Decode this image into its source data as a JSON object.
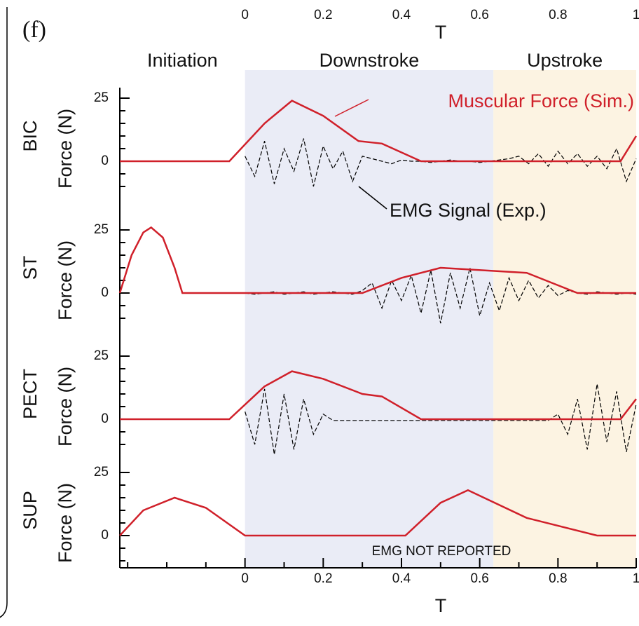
{
  "chart_data": {
    "type": "line",
    "panel_label": "(f)",
    "xlabel": "T",
    "xlim": [
      -0.32,
      1
    ],
    "xticks": [
      0,
      0.2,
      0.4,
      0.6,
      0.8,
      1
    ],
    "xminor": [
      -0.3,
      -0.2,
      -0.1,
      0.1,
      0.3,
      0.5,
      0.7,
      0.9
    ],
    "phases": [
      {
        "label": "Initiation",
        "start": -0.32,
        "end": 0
      },
      {
        "label": "Downstroke",
        "start": 0,
        "end": 0.635,
        "color": "#eaecf6"
      },
      {
        "label": "Upstroke",
        "start": 0.635,
        "end": 1,
        "color": "#fcf3e2"
      }
    ],
    "annotations": [
      "Muscular Force (Sim.)",
      "EMG Signal (Exp.)",
      "EMG NOT REPORTED"
    ],
    "ylim": [
      -12,
      28
    ],
    "yticks": [
      0,
      25
    ],
    "yminor": [
      -10,
      -5,
      5,
      10,
      15,
      20
    ],
    "emg_x": [
      0,
      0.025,
      0.05,
      0.075,
      0.1,
      0.125,
      0.15,
      0.175,
      0.2,
      0.225,
      0.25,
      0.275,
      0.3,
      0.325,
      0.35,
      0.375,
      0.4,
      0.425,
      0.45,
      0.475,
      0.5,
      0.525,
      0.55,
      0.575,
      0.6,
      0.625,
      0.65,
      0.675,
      0.7,
      0.725,
      0.75,
      0.775,
      0.8,
      0.825,
      0.85,
      0.875,
      0.9,
      0.925,
      0.95,
      0.975,
      1
    ],
    "panels": [
      {
        "muscle": "BIC",
        "ylabel": "Force (N)",
        "series": [
          {
            "color": "#d0202a",
            "x": [
              -0.32,
              -0.04,
              0.05,
              0.12,
              0.2,
              0.29,
              0.35,
              0.45,
              0.96,
              1
            ],
            "values": [
              0,
              0,
              15,
              24,
              18,
              8,
              7,
              0,
              0,
              10
            ]
          },
          {
            "color": "#000000",
            "values": [
              2,
              -6,
              8,
              -9,
              5,
              -4,
              9,
              -10,
              6,
              -3,
              4,
              -8,
              2,
              1,
              0,
              -1,
              0.5,
              0,
              0,
              -0.5,
              0,
              0.5,
              0,
              0,
              -0.5,
              0,
              0.5,
              1,
              2,
              -1,
              3,
              -2,
              4,
              -1,
              3,
              -2,
              2,
              -3,
              5,
              -8,
              1
            ]
          }
        ]
      },
      {
        "muscle": "ST",
        "ylabel": "Force (N)",
        "series": [
          {
            "color": "#d0202a",
            "x": [
              -0.32,
              -0.29,
              -0.26,
              -0.24,
              -0.21,
              -0.18,
              -0.16,
              0.3,
              0.4,
              0.5,
              0.72,
              0.85,
              1
            ],
            "values": [
              0,
              15,
              24,
              26,
              22,
              10,
              0,
              0,
              6,
              10,
              8,
              0,
              0
            ]
          },
          {
            "color": "#000000",
            "values": [
              0,
              -0.5,
              0,
              0.5,
              -0.5,
              0,
              0.5,
              -0.5,
              0,
              0.5,
              0,
              -0.5,
              1,
              4,
              -6,
              5,
              -3,
              7,
              -8,
              9,
              -12,
              8,
              -6,
              10,
              -9,
              4,
              -7,
              6,
              -3,
              5,
              -2,
              3,
              -1,
              1,
              0,
              -0.5,
              0.5,
              0,
              -0.5,
              0,
              -0.5
            ]
          }
        ]
      },
      {
        "muscle": "PECT",
        "ylabel": "Force (N)",
        "series": [
          {
            "color": "#d0202a",
            "x": [
              -0.32,
              -0.04,
              0.05,
              0.12,
              0.2,
              0.3,
              0.35,
              0.45,
              0.96,
              1
            ],
            "values": [
              0,
              0,
              13,
              19,
              16,
              10,
              9,
              0,
              0,
              8
            ]
          },
          {
            "color": "#000000",
            "values": [
              3,
              -10,
              12,
              -14,
              10,
              -12,
              8,
              -6,
              2,
              -0.5,
              -0.5,
              -0.5,
              -0.5,
              -0.5,
              -0.5,
              -0.5,
              -0.5,
              -0.5,
              -0.5,
              -0.5,
              -0.5,
              -0.5,
              -0.5,
              -0.5,
              -0.5,
              -0.5,
              -0.5,
              -0.5,
              -0.5,
              -0.5,
              -0.5,
              -0.5,
              2,
              -6,
              8,
              -12,
              14,
              -9,
              11,
              -13,
              6
            ]
          }
        ]
      },
      {
        "muscle": "SUP",
        "ylabel": "Force (N)",
        "series": [
          {
            "color": "#d0202a",
            "x": [
              -0.32,
              -0.26,
              -0.18,
              -0.1,
              0,
              0.41,
              0.5,
              0.57,
              0.72,
              0.9,
              1
            ],
            "values": [
              0,
              10,
              15,
              11,
              0,
              0,
              13,
              18,
              7,
              0,
              0
            ]
          }
        ]
      }
    ]
  }
}
